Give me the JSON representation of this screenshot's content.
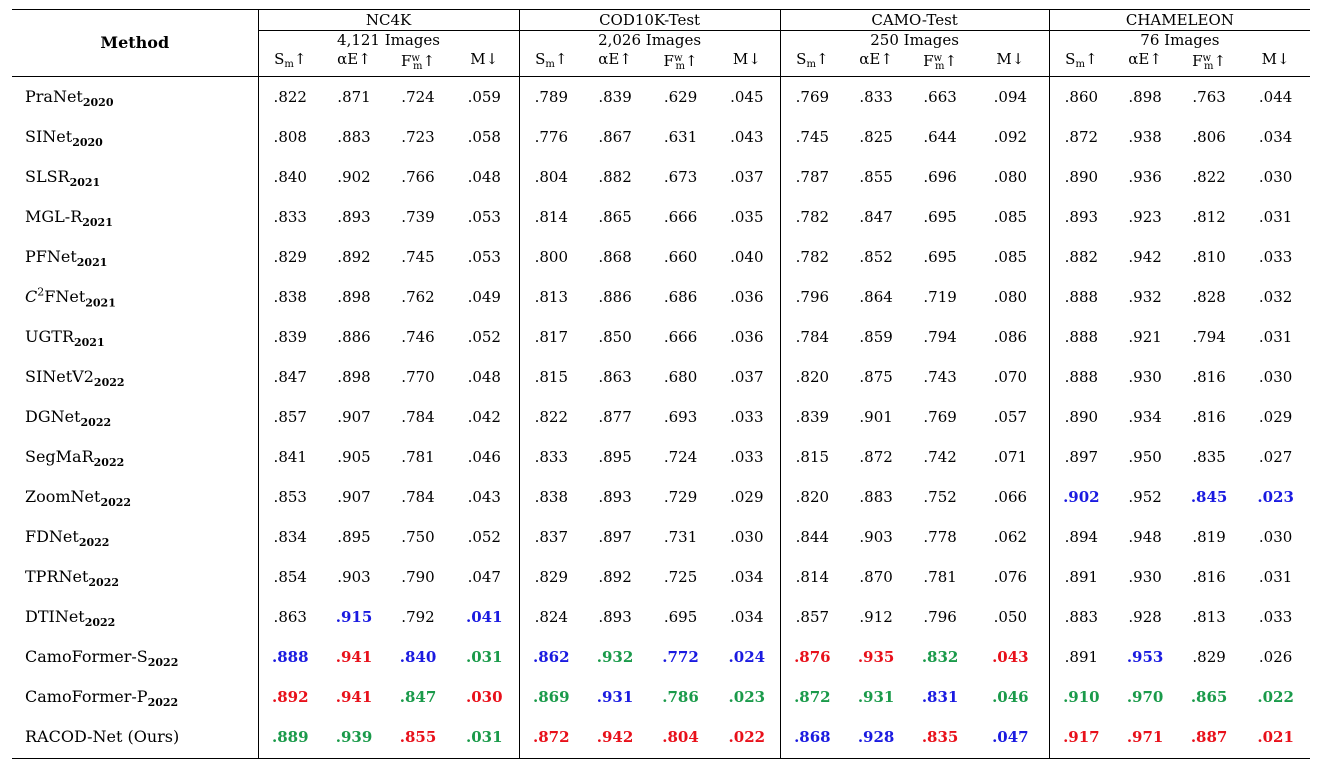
{
  "header": {
    "method_label": "Method",
    "datasets": [
      {
        "name": "NC4K",
        "count": "4,121 Images"
      },
      {
        "name": "COD10K-Test",
        "count": "2,026 Images"
      },
      {
        "name": "CAMO-Test",
        "count": "250 Images"
      },
      {
        "name": "CHAMELEON",
        "count": "76 Images"
      }
    ],
    "metrics": [
      "Sm↑",
      "αE↑",
      "Fwm↑",
      "M↓"
    ]
  },
  "colors": {
    "red": "#e8101a",
    "green": "#1a9a4a",
    "blue": "#1a1ae0"
  },
  "rows": [
    {
      "name": "PraNet",
      "year": "2020",
      "vals": [
        ".822",
        ".871",
        ".724",
        ".059",
        ".789",
        ".839",
        ".629",
        ".045",
        ".769",
        ".833",
        ".663",
        ".094",
        ".860",
        ".898",
        ".763",
        ".044"
      ],
      "hl": [
        "",
        "",
        "",
        "",
        "",
        "",
        "",
        "",
        "",
        "",
        "",
        "",
        "",
        "",
        "",
        ""
      ]
    },
    {
      "name": "SINet",
      "year": "2020",
      "vals": [
        ".808",
        ".883",
        ".723",
        ".058",
        ".776",
        ".867",
        ".631",
        ".043",
        ".745",
        ".825",
        ".644",
        ".092",
        ".872",
        ".938",
        ".806",
        ".034"
      ],
      "hl": [
        "",
        "",
        "",
        "",
        "",
        "",
        "",
        "",
        "",
        "",
        "",
        "",
        "",
        "",
        "",
        ""
      ]
    },
    {
      "name": "SLSR",
      "year": "2021",
      "vals": [
        ".840",
        ".902",
        ".766",
        ".048",
        ".804",
        ".882",
        ".673",
        ".037",
        ".787",
        ".855",
        ".696",
        ".080",
        ".890",
        ".936",
        ".822",
        ".030"
      ],
      "hl": [
        "",
        "",
        "",
        "",
        "",
        "",
        "",
        "",
        "",
        "",
        "",
        "",
        "",
        "",
        "",
        ""
      ]
    },
    {
      "name": "MGL-R",
      "year": "2021",
      "vals": [
        ".833",
        ".893",
        ".739",
        ".053",
        ".814",
        ".865",
        ".666",
        ".035",
        ".782",
        ".847",
        ".695",
        ".085",
        ".893",
        ".923",
        ".812",
        ".031"
      ],
      "hl": [
        "",
        "",
        "",
        "",
        "",
        "",
        "",
        "",
        "",
        "",
        "",
        "",
        "",
        "",
        "",
        ""
      ]
    },
    {
      "name": "PFNet",
      "year": "2021",
      "vals": [
        ".829",
        ".892",
        ".745",
        ".053",
        ".800",
        ".868",
        ".660",
        ".040",
        ".782",
        ".852",
        ".695",
        ".085",
        ".882",
        ".942",
        ".810",
        ".033"
      ],
      "hl": [
        "",
        "",
        "",
        "",
        "",
        "",
        "",
        "",
        "",
        "",
        "",
        "",
        "",
        "",
        "",
        ""
      ]
    },
    {
      "name": "C²FNet",
      "year": "2021",
      "vals": [
        ".838",
        ".898",
        ".762",
        ".049",
        ".813",
        ".886",
        ".686",
        ".036",
        ".796",
        ".864",
        ".719",
        ".080",
        ".888",
        ".932",
        ".828",
        ".032"
      ],
      "hl": [
        "",
        "",
        "",
        "",
        "",
        "",
        "",
        "",
        "",
        "",
        "",
        "",
        "",
        "",
        "",
        ""
      ]
    },
    {
      "name": "UGTR",
      "year": "2021",
      "vals": [
        ".839",
        ".886",
        ".746",
        ".052",
        ".817",
        ".850",
        ".666",
        ".036",
        ".784",
        ".859",
        ".794",
        ".086",
        ".888",
        ".921",
        ".794",
        ".031"
      ],
      "hl": [
        "",
        "",
        "",
        "",
        "",
        "",
        "",
        "",
        "",
        "",
        "",
        "",
        "",
        "",
        "",
        ""
      ]
    },
    {
      "name": "SINetV2",
      "year": "2022",
      "vals": [
        ".847",
        ".898",
        ".770",
        ".048",
        ".815",
        ".863",
        ".680",
        ".037",
        ".820",
        ".875",
        ".743",
        ".070",
        ".888",
        ".930",
        ".816",
        ".030"
      ],
      "hl": [
        "",
        "",
        "",
        "",
        "",
        "",
        "",
        "",
        "",
        "",
        "",
        "",
        "",
        "",
        "",
        ""
      ]
    },
    {
      "name": "DGNet",
      "year": "2022",
      "vals": [
        ".857",
        ".907",
        ".784",
        ".042",
        ".822",
        ".877",
        ".693",
        ".033",
        ".839",
        ".901",
        ".769",
        ".057",
        ".890",
        ".934",
        ".816",
        ".029"
      ],
      "hl": [
        "",
        "",
        "",
        "",
        "",
        "",
        "",
        "",
        "",
        "",
        "",
        "",
        "",
        "",
        "",
        ""
      ]
    },
    {
      "name": "SegMaR",
      "year": "2022",
      "vals": [
        ".841",
        ".905",
        ".781",
        ".046",
        ".833",
        ".895",
        ".724",
        ".033",
        ".815",
        ".872",
        ".742",
        ".071",
        ".897",
        ".950",
        ".835",
        ".027"
      ],
      "hl": [
        "",
        "",
        "",
        "",
        "",
        "",
        "",
        "",
        "",
        "",
        "",
        "",
        "",
        "",
        "",
        ""
      ]
    },
    {
      "name": "ZoomNet",
      "year": "2022",
      "vals": [
        ".853",
        ".907",
        ".784",
        ".043",
        ".838",
        ".893",
        ".729",
        ".029",
        ".820",
        ".883",
        ".752",
        ".066",
        ".902",
        ".952",
        ".845",
        ".023"
      ],
      "hl": [
        "",
        "",
        "",
        "",
        "",
        "",
        "",
        "",
        "",
        "",
        "",
        "",
        "blue",
        "",
        "blue",
        "blue"
      ]
    },
    {
      "name": "FDNet",
      "year": "2022",
      "vals": [
        ".834",
        ".895",
        ".750",
        ".052",
        ".837",
        ".897",
        ".731",
        ".030",
        ".844",
        ".903",
        ".778",
        ".062",
        ".894",
        ".948",
        ".819",
        ".030"
      ],
      "hl": [
        "",
        "",
        "",
        "",
        "",
        "",
        "",
        "",
        "",
        "",
        "",
        "",
        "",
        "",
        "",
        ""
      ]
    },
    {
      "name": "TPRNet",
      "year": "2022",
      "vals": [
        ".854",
        ".903",
        ".790",
        ".047",
        ".829",
        ".892",
        ".725",
        ".034",
        ".814",
        ".870",
        ".781",
        ".076",
        ".891",
        ".930",
        ".816",
        ".031"
      ],
      "hl": [
        "",
        "",
        "",
        "",
        "",
        "",
        "",
        "",
        "",
        "",
        "",
        "",
        "",
        "",
        "",
        ""
      ]
    },
    {
      "name": "DTINet",
      "year": "2022",
      "vals": [
        ".863",
        ".915",
        ".792",
        ".041",
        ".824",
        ".893",
        ".695",
        ".034",
        ".857",
        ".912",
        ".796",
        ".050",
        ".883",
        ".928",
        ".813",
        ".033"
      ],
      "hl": [
        "",
        "blue",
        "",
        "blue",
        "",
        "",
        "",
        "",
        "",
        "",
        "",
        "",
        "",
        "",
        "",
        ""
      ]
    },
    {
      "name": "CamoFormer-S",
      "year": "2022",
      "vals": [
        ".888",
        ".941",
        ".840",
        ".031",
        ".862",
        ".932",
        ".772",
        ".024",
        ".876",
        ".935",
        ".832",
        ".043",
        ".891",
        ".953",
        ".829",
        ".026"
      ],
      "hl": [
        "blue",
        "red",
        "blue",
        "green",
        "blue",
        "green",
        "blue",
        "blue",
        "red",
        "red",
        "green",
        "red",
        "",
        "blue",
        "",
        ""
      ]
    },
    {
      "name": "CamoFormer-P",
      "year": "2022",
      "vals": [
        ".892",
        ".941",
        ".847",
        ".030",
        ".869",
        ".931",
        ".786",
        ".023",
        ".872",
        ".931",
        ".831",
        ".046",
        ".910",
        ".970",
        ".865",
        ".022"
      ],
      "hl": [
        "red",
        "red",
        "green",
        "red",
        "green",
        "blue",
        "green",
        "green",
        "green",
        "green",
        "blue",
        "green",
        "green",
        "green",
        "green",
        "green"
      ]
    },
    {
      "name": "RACOD-Net (Ours)",
      "year": "",
      "vals": [
        ".889",
        ".939",
        ".855",
        ".031",
        ".872",
        ".942",
        ".804",
        ".022",
        ".868",
        ".928",
        ".835",
        ".047",
        ".917",
        ".971",
        ".887",
        ".021"
      ],
      "hl": [
        "green",
        "green",
        "red",
        "green",
        "red",
        "red",
        "red",
        "red",
        "blue",
        "blue",
        "red",
        "blue",
        "red",
        "red",
        "red",
        "red"
      ]
    }
  ]
}
